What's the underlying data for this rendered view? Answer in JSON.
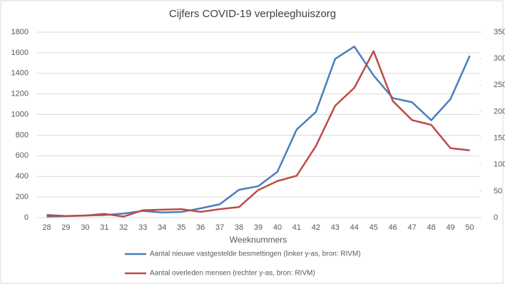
{
  "chart_data": {
    "type": "line",
    "title": "Cijfers COVID-19 verpleeghuiszorg",
    "x_label": "Weeknummers",
    "categories": [
      "28",
      "29",
      "30",
      "31",
      "32",
      "33",
      "34",
      "35",
      "36",
      "37",
      "38",
      "39",
      "40",
      "41",
      "42",
      "43",
      "44",
      "45",
      "46",
      "47",
      "48",
      "49",
      "50"
    ],
    "series": [
      {
        "name": "Aantal nieuwe vastgestelde besmettingen  (linker y-as, bron: RIVM)",
        "color": "#4a7ebb",
        "values": [
          10,
          15,
          20,
          25,
          40,
          65,
          50,
          55,
          90,
          130,
          270,
          305,
          445,
          855,
          1025,
          1540,
          1660,
          1380,
          1160,
          1120,
          945,
          1150,
          1570
        ]
      },
      {
        "name": "Aantal overleden mensen  (rechter y-as, bron: RIVM)",
        "color": "#be4b48",
        "axis": "y2",
        "values": [
          5,
          3,
          4,
          7,
          2,
          14,
          15,
          16,
          11,
          16,
          20,
          52,
          69,
          79,
          135,
          211,
          245,
          314,
          220,
          184,
          175,
          131,
          127
        ]
      }
    ],
    "ylim": [
      0,
      1800
    ],
    "yticks": [
      0,
      200,
      400,
      600,
      800,
      1000,
      1200,
      1400,
      1600,
      1800
    ],
    "y2lim": [
      0,
      350
    ],
    "y2ticks": [
      0,
      50,
      100,
      150,
      200,
      250,
      300,
      350
    ],
    "grid": true,
    "legend": "bottom"
  }
}
